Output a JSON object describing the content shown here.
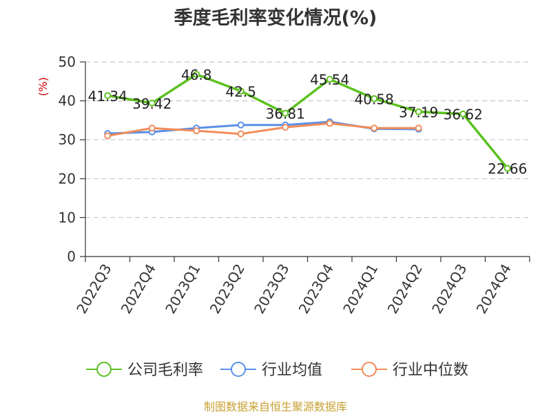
{
  "chart_data": {
    "type": "line",
    "title": "季度毛利率变化情况(%)",
    "ylabel": "(%)",
    "categories": [
      "2022Q3",
      "2022Q4",
      "2023Q1",
      "2023Q2",
      "2023Q3",
      "2023Q4",
      "2024Q1",
      "2024Q2",
      "2024Q3",
      "2024Q4"
    ],
    "ylim": [
      0,
      50
    ],
    "yticks": [
      0,
      10,
      20,
      30,
      40,
      50
    ],
    "grid": true,
    "legend_position": "bottom",
    "series": [
      {
        "name": "公司毛利率",
        "color": "#5cc11f",
        "values": [
          41.34,
          39.42,
          46.8,
          42.5,
          36.81,
          45.54,
          40.58,
          37.19,
          36.62,
          22.66
        ],
        "labels": [
          "41.34",
          "39.42",
          "46.8",
          "42.5",
          "36.81",
          "45.54",
          "40.58",
          "37.19",
          "36.62",
          "22.66"
        ]
      },
      {
        "name": "行业均值",
        "color": "#5b8ee6",
        "values": [
          31.6,
          32.0,
          33.0,
          33.8,
          33.8,
          34.6,
          32.8,
          32.7,
          null,
          null
        ]
      },
      {
        "name": "行业中位数",
        "color": "#f28c5a",
        "values": [
          31.0,
          33.0,
          32.3,
          31.5,
          33.2,
          34.2,
          33.0,
          33.0,
          null,
          null
        ]
      }
    ]
  },
  "footer": {
    "source": "制图数据来自恒生聚源数据库"
  }
}
